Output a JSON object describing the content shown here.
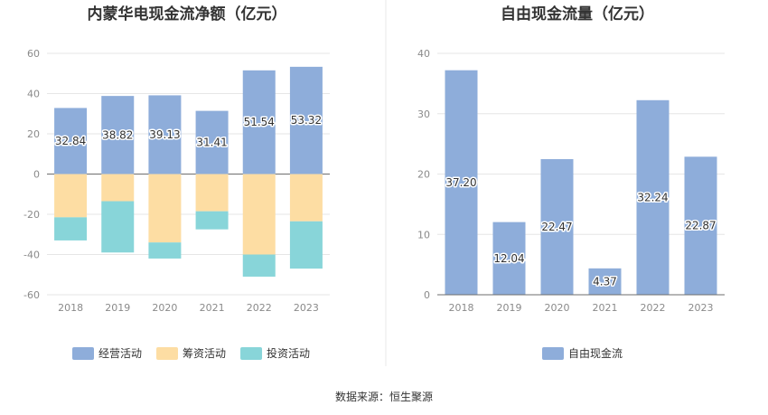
{
  "chart_data": [
    {
      "type": "bar",
      "stacked": true,
      "title": "内蒙华电现金流净额（亿元）",
      "categories": [
        "2018",
        "2019",
        "2020",
        "2021",
        "2022",
        "2023"
      ],
      "series": [
        {
          "name": "经营活动",
          "color": "#8eadda",
          "values": [
            32.84,
            38.82,
            39.13,
            31.41,
            51.54,
            53.32
          ],
          "labels": [
            "32.84",
            "38.82",
            "39.13",
            "31.41",
            "51.54",
            "53.32"
          ]
        },
        {
          "name": "筹资活动",
          "color": "#fddda3",
          "values": [
            -21.5,
            -13.5,
            -34.0,
            -18.5,
            -40.0,
            -23.5
          ]
        },
        {
          "name": "投资活动",
          "color": "#88d5d9",
          "values": [
            -11.5,
            -25.5,
            -8.0,
            -9.0,
            -11.0,
            -23.5
          ]
        }
      ],
      "ylim": [
        -60,
        60
      ],
      "yticks": [
        60,
        40,
        20,
        0,
        -20,
        -40,
        -60
      ],
      "ytick_labels": [
        "60",
        "40",
        "20",
        "0",
        "-20",
        "-40",
        "-60"
      ],
      "grid": true,
      "legend_position": "bottom"
    },
    {
      "type": "bar",
      "title": "自由现金流量（亿元）",
      "categories": [
        "2018",
        "2019",
        "2020",
        "2021",
        "2022",
        "2023"
      ],
      "series": [
        {
          "name": "自由现金流",
          "color": "#8eadda",
          "values": [
            37.2,
            12.04,
            22.47,
            4.37,
            32.24,
            22.87
          ],
          "labels": [
            "37.20",
            "12.04",
            "22.47",
            "4.37",
            "32.24",
            "22.87"
          ]
        }
      ],
      "ylim": [
        0,
        40
      ],
      "yticks": [
        40,
        30,
        20,
        10,
        0
      ],
      "ytick_labels": [
        "40",
        "30",
        "20",
        "10",
        "0"
      ],
      "grid": true,
      "legend_position": "bottom"
    }
  ],
  "footer": {
    "source": "数据来源：恒生聚源"
  }
}
